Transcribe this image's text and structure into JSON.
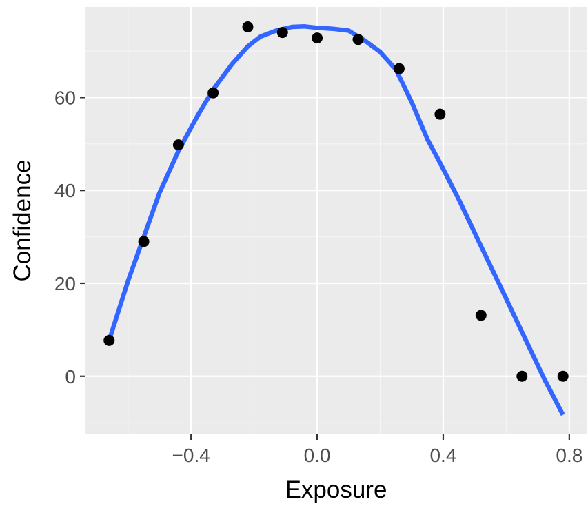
{
  "chart_data": {
    "type": "scatter",
    "xlabel": "Exposure",
    "ylabel": "Confidence",
    "xlim": [
      -0.735,
      0.855
    ],
    "ylim": [
      -12.5,
      79.5
    ],
    "x_ticks": [
      -0.4,
      0.0,
      0.4,
      0.8
    ],
    "x_tick_labels": [
      "−0.4",
      "0.0",
      "0.4",
      "0.8"
    ],
    "y_ticks": [
      0,
      20,
      40,
      60
    ],
    "y_tick_labels": [
      "0",
      "20",
      "40",
      "60"
    ],
    "grid": true,
    "legend": "none",
    "points": {
      "x": [
        -0.66,
        -0.55,
        -0.44,
        -0.33,
        -0.22,
        -0.11,
        0.0,
        0.13,
        0.26,
        0.39,
        0.52,
        0.65,
        0.78
      ],
      "y": [
        7.7,
        29.0,
        49.8,
        61.0,
        75.2,
        74.0,
        72.8,
        72.5,
        66.2,
        56.4,
        13.1,
        0.0,
        0.0
      ]
    },
    "smooth": {
      "x": [
        -0.66,
        -0.6,
        -0.55,
        -0.5,
        -0.44,
        -0.38,
        -0.33,
        -0.27,
        -0.22,
        -0.18,
        -0.13,
        -0.08,
        -0.04,
        0.0,
        0.05,
        0.1,
        0.15,
        0.2,
        0.25,
        0.3,
        0.35,
        0.39,
        0.45,
        0.52,
        0.58,
        0.65,
        0.72,
        0.78
      ],
      "y": [
        7.7,
        20.5,
        30.0,
        39.5,
        48.5,
        56.0,
        61.7,
        67.2,
        71.0,
        73.1,
        74.4,
        75.2,
        75.3,
        75.0,
        74.8,
        74.4,
        72.3,
        69.8,
        66.0,
        59.0,
        51.0,
        45.9,
        38.0,
        28.0,
        19.5,
        9.5,
        -0.5,
        -8.3
      ]
    },
    "colors": {
      "panel_background": "#EBEBEB",
      "grid_major": "#FFFFFF",
      "grid_minor": "#F5F5F5",
      "points": "#000000",
      "smooth_line": "#3366FF",
      "tick_text": "#4D4D4D",
      "axis_title": "#000000"
    }
  }
}
